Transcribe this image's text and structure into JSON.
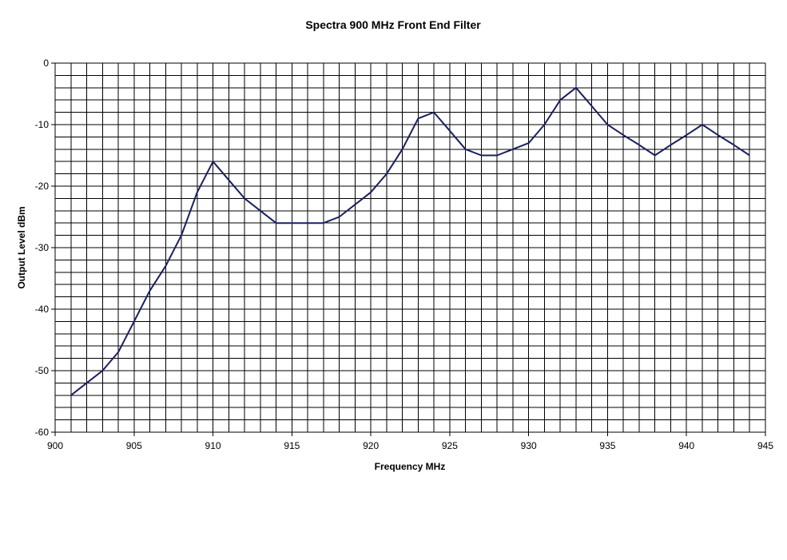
{
  "chart_data": {
    "type": "line",
    "title": "Spectra 900 MHz Front End Filter",
    "xlabel": "Frequency MHz",
    "ylabel": "Output Level dBm",
    "xlim": [
      900,
      945
    ],
    "ylim": [
      -60,
      0
    ],
    "x_ticks": [
      "900",
      "905",
      "910",
      "915",
      "920",
      "925",
      "930",
      "935",
      "940",
      "945"
    ],
    "y_ticks": [
      "0",
      "-10",
      "-20",
      "-30",
      "-40",
      "-50",
      "-60"
    ],
    "grid": true,
    "legend": "none",
    "line_color": "#1a1f5e",
    "series": [
      {
        "x": [
          901,
          902,
          903,
          904,
          905,
          906,
          907,
          908,
          909,
          910,
          911,
          912,
          913,
          914,
          915,
          916,
          917,
          918,
          919,
          920,
          921,
          922,
          923,
          924,
          925,
          926,
          927,
          928,
          929,
          930,
          931,
          932,
          933,
          934,
          935,
          936,
          937,
          938,
          939,
          940,
          941,
          942,
          943,
          944
        ],
        "values": [
          -54,
          -52,
          -50,
          -47,
          -42,
          -37,
          -33,
          -28,
          -21,
          -16,
          -19,
          -22,
          -24,
          -26,
          -26,
          -26,
          -26,
          -25,
          -23,
          -21,
          -18,
          -14,
          -9,
          -8,
          -11,
          -14,
          -15,
          -15,
          -14,
          -13,
          -10,
          -6,
          -4,
          -7,
          -10,
          -11.7,
          -13.3,
          -15,
          -13.3,
          -11.7,
          -10,
          -11.7,
          -13.3,
          -15
        ]
      }
    ]
  }
}
